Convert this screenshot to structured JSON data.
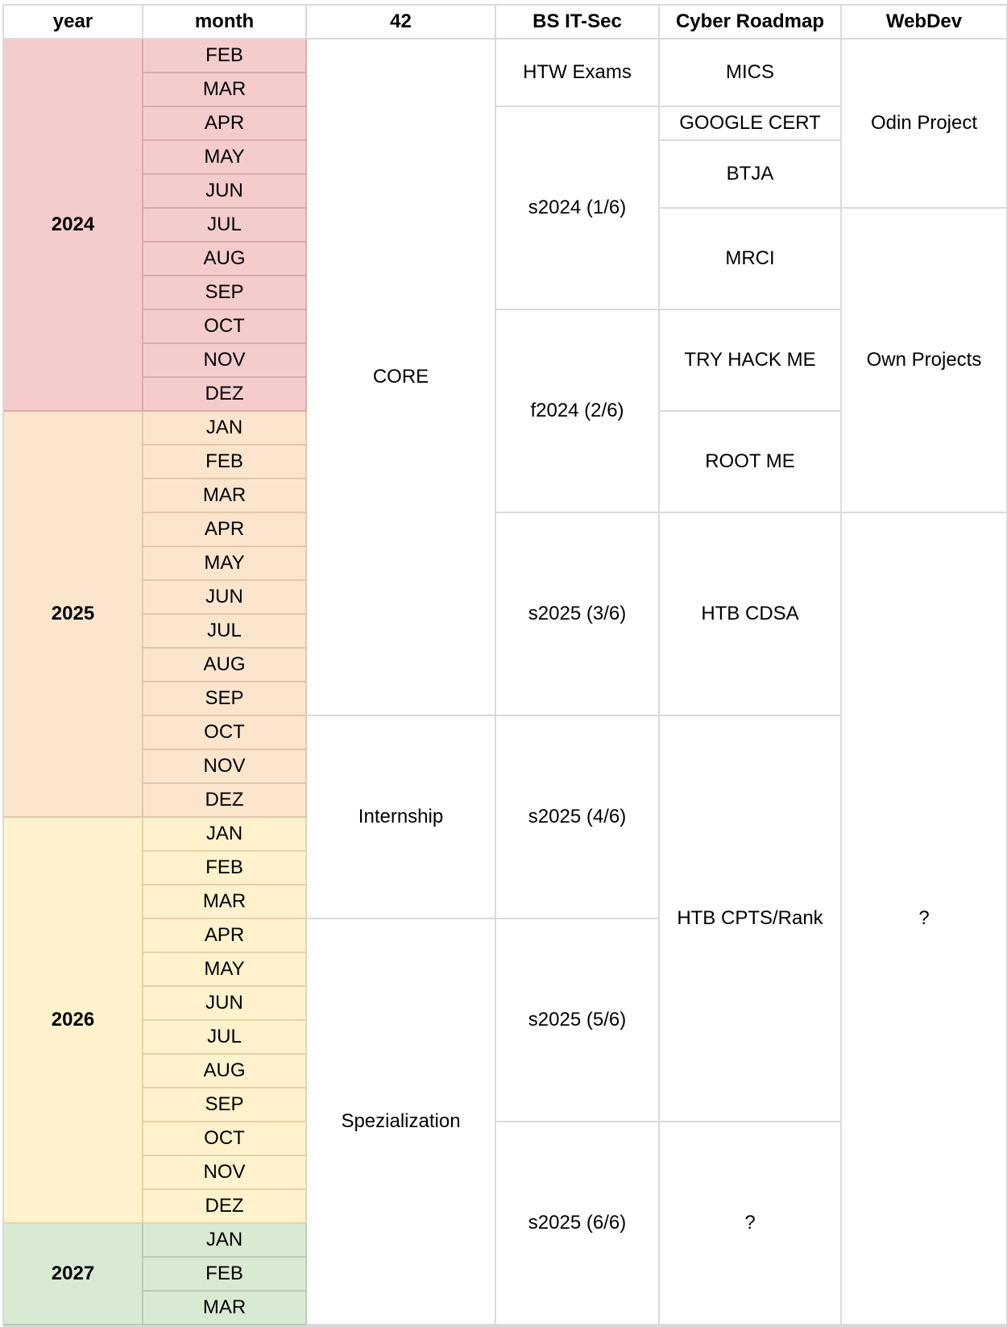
{
  "headers": [
    "year",
    "month",
    "42",
    "BS IT-Sec",
    "Cyber Roadmap",
    "WebDev"
  ],
  "colors": {
    "2024": "#f4cccc",
    "2025": "#fce5cd",
    "2026": "#fff2cc",
    "2027": "#d9ead3"
  },
  "border_colors": {
    "2024": "#dbaaaa",
    "2025": "#e3c6aa",
    "2026": "#e3d3a8",
    "2027": "#b8cdb1"
  },
  "years": [
    {
      "label": "2024",
      "months": [
        "FEB",
        "MAR",
        "APR",
        "MAY",
        "JUN",
        "JUL",
        "AUG",
        "SEP",
        "OCT",
        "NOV",
        "DEZ"
      ]
    },
    {
      "label": "2025",
      "months": [
        "JAN",
        "FEB",
        "MAR",
        "APR",
        "MAY",
        "JUN",
        "JUL",
        "AUG",
        "SEP",
        "OCT",
        "NOV",
        "DEZ"
      ]
    },
    {
      "label": "2026",
      "months": [
        "JAN",
        "FEB",
        "MAR",
        "APR",
        "MAY",
        "JUN",
        "JUL",
        "AUG",
        "SEP",
        "OCT",
        "NOV",
        "DEZ"
      ]
    },
    {
      "label": "2027",
      "months": [
        "JAN",
        "FEB",
        "MAR"
      ]
    }
  ],
  "columns": [
    {
      "key": "42",
      "blocks": [
        {
          "label": "CORE",
          "rows": 20
        },
        {
          "label": "Internship",
          "rows": 6
        },
        {
          "label": "Spezialization",
          "rows": 12
        }
      ]
    },
    {
      "key": "bs",
      "blocks": [
        {
          "label": "HTW Exams",
          "rows": 2
        },
        {
          "label": "s2024 (1/6)",
          "rows": 6
        },
        {
          "label": "f2024 (2/6)",
          "rows": 6
        },
        {
          "label": "s2025 (3/6)",
          "rows": 6
        },
        {
          "label": "s2025 (4/6)",
          "rows": 6
        },
        {
          "label": "s2025 (5/6)",
          "rows": 6
        },
        {
          "label": "s2025 (6/6)",
          "rows": 6
        }
      ]
    },
    {
      "key": "cyber",
      "blocks": [
        {
          "label": "MICS",
          "rows": 2
        },
        {
          "label": "GOOGLE CERT",
          "rows": 1
        },
        {
          "label": "BTJA",
          "rows": 2
        },
        {
          "label": "MRCI",
          "rows": 3
        },
        {
          "label": "TRY HACK ME",
          "rows": 3
        },
        {
          "label": "ROOT ME",
          "rows": 3
        },
        {
          "label": "HTB CDSA",
          "rows": 6
        },
        {
          "label": "HTB CPTS/Rank",
          "rows": 12
        },
        {
          "label": "?",
          "rows": 6
        }
      ]
    },
    {
      "key": "webdev",
      "blocks": [
        {
          "label": "Odin Project",
          "rows": 5
        },
        {
          "label": "Own Projects",
          "rows": 9
        },
        {
          "label": "?",
          "rows": 24
        }
      ]
    }
  ]
}
